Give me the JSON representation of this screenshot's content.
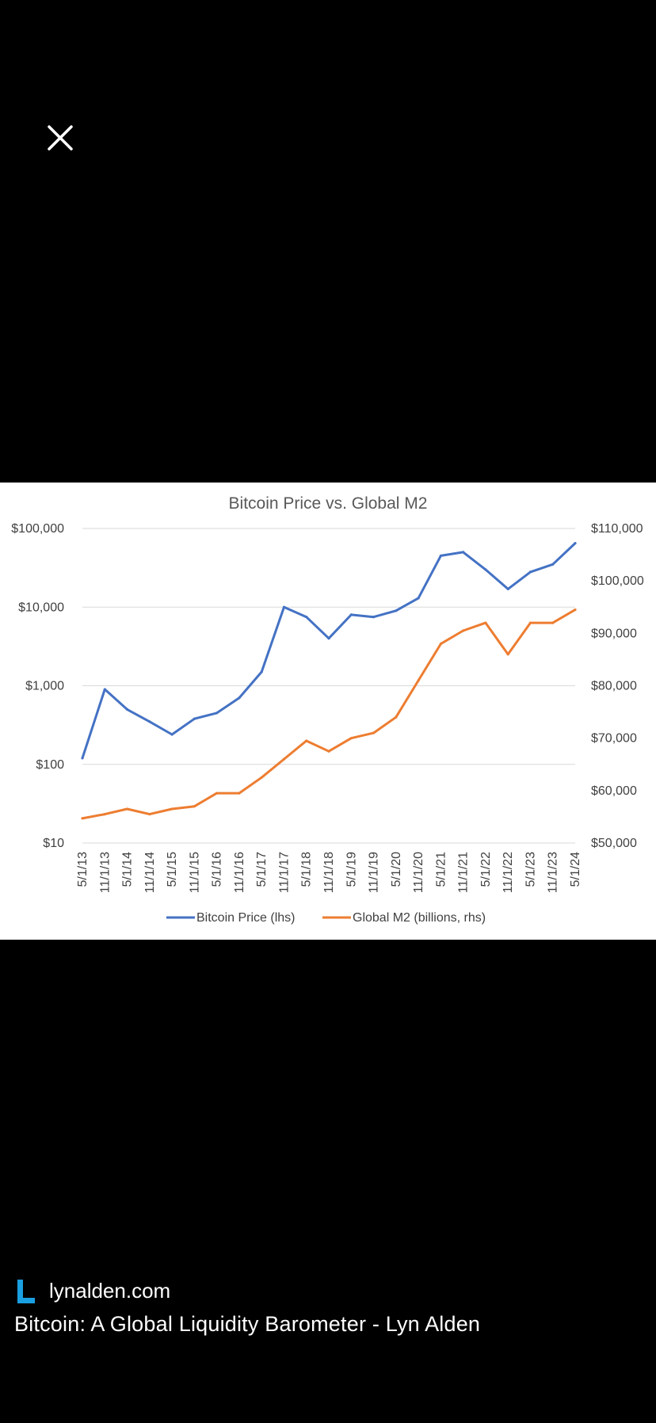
{
  "viewer": {
    "close_icon": "close-icon"
  },
  "source": {
    "logo_icon": "lynalden-logo-icon",
    "logo_color": "#1a9fe0",
    "domain": "lynalden.com"
  },
  "caption": "Bitcoin: A Global Liquidity Barometer - Lyn Alden",
  "chart_data": {
    "type": "line",
    "title": "Bitcoin Price vs. Global M2",
    "x": [
      "5/1/13",
      "11/1/13",
      "5/1/14",
      "11/1/14",
      "5/1/15",
      "11/1/15",
      "5/1/16",
      "11/1/16",
      "5/1/17",
      "11/1/17",
      "5/1/18",
      "11/1/18",
      "5/1/19",
      "11/1/19",
      "5/1/20",
      "11/1/20",
      "5/1/21",
      "11/1/21",
      "5/1/22",
      "11/1/22",
      "5/1/23",
      "11/1/23",
      "5/1/24"
    ],
    "y_left": {
      "scale": "log",
      "ylim": [
        10,
        100000
      ],
      "tick_labels": [
        "$100,000",
        "$10,000",
        "$1,000",
        "$100",
        "$10"
      ]
    },
    "y_right": {
      "scale": "linear",
      "ylim": [
        50000,
        110000
      ],
      "tick_labels": [
        "$110,000",
        "$100,000",
        "$90,000",
        "$80,000",
        "$70,000",
        "$60,000",
        "$50,000"
      ]
    },
    "grid": true,
    "legend_position": "bottom",
    "series": [
      {
        "name": "Bitcoin Price (lhs)",
        "axis": "left",
        "color": "#4472c4",
        "values": [
          120,
          900,
          500,
          350,
          240,
          380,
          450,
          700,
          1500,
          10000,
          7500,
          4000,
          8000,
          7500,
          9000,
          13000,
          45000,
          50000,
          30000,
          17000,
          28000,
          35000,
          65000
        ]
      },
      {
        "name": "Global M2 (billions, rhs)",
        "axis": "right",
        "color": "#ed7d31",
        "values": [
          54700,
          55500,
          56500,
          55500,
          56500,
          57000,
          59500,
          59500,
          62500,
          66000,
          69500,
          67500,
          70000,
          71000,
          74000,
          81000,
          88000,
          90500,
          92000,
          86000,
          92000,
          92000,
          94500
        ]
      }
    ]
  }
}
